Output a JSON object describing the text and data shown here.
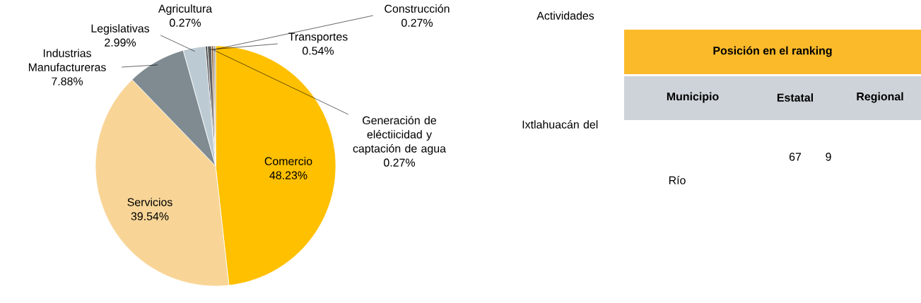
{
  "chart_data": [
    {
      "type": "pie",
      "categories": [
        "Comercio",
        "Servicios",
        "Industrias Manufactureras",
        "Legislativas",
        "Agricultura",
        "Transportes",
        "Generación de eléctiicidad y captación de agua",
        "Construcción"
      ],
      "values": [
        48.23,
        39.54,
        7.88,
        2.99,
        0.27,
        0.54,
        0.27,
        0.27
      ],
      "value_labels": [
        "48.23%",
        "39.54%",
        "7.88%",
        "2.99%",
        "0.27%",
        "0.54%",
        "0.27%",
        "0.27%"
      ],
      "colors": [
        "#ffc000",
        "#f8d597",
        "#7f8b91",
        "#bccbd3",
        "#3f3f3f",
        "#5f5f5f",
        "#8c5a2b",
        "#a0a0a0"
      ]
    },
    {
      "type": "other",
      "annotations": [
        "Actividades",
        "Posición en el ranking",
        "Municipio",
        "Estatal",
        "Regional",
        "Ixtlahuacán del",
        "Río",
        "67",
        "9"
      ]
    }
  ]
}
